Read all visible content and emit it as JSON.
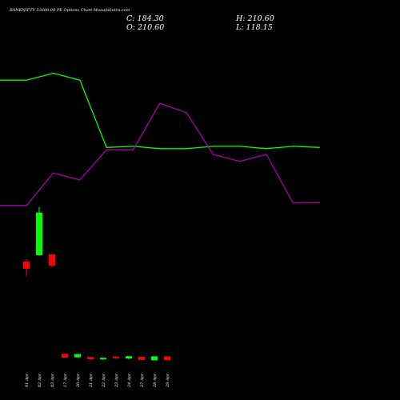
{
  "header": {
    "title": "BANKNIFTY 53600.00 PE Options Chart MunafaSutra.com",
    "close_label": "C: 184.30",
    "open_label": "O: 210.60",
    "high_label": "H: 210.60",
    "low_label": "L: 118.15"
  },
  "colors": {
    "background": "#000000",
    "up": "#00ff00",
    "down": "#ff0000",
    "line_green": "#00ff00",
    "line_purple": "#aa00aa",
    "text": "#ffffff"
  },
  "chart_data": {
    "type": "candlestick",
    "categories": [
      "01 Apr",
      "02 Apr",
      "03 Apr",
      "17 Apr",
      "20 Apr",
      "21 Apr",
      "22 Apr",
      "23 Apr",
      "24 Apr",
      "27 Apr",
      "28 Apr",
      "29 Apr"
    ],
    "price_ohlc": [
      {
        "open": 210,
        "high": 218,
        "low": 160,
        "close": 185
      },
      {
        "open": 232,
        "high": 400,
        "low": 230,
        "close": 380
      },
      {
        "open": 235,
        "high": 235,
        "low": 190,
        "close": 195
      },
      null,
      null,
      null,
      null,
      null,
      null,
      null,
      null,
      null
    ],
    "volume_ohlc": [
      null,
      null,
      null,
      {
        "open": 520,
        "high": 520,
        "low": 360,
        "close": 360
      },
      {
        "open": 360,
        "high": 500,
        "low": 360,
        "close": 500
      },
      {
        "open": 120,
        "high": 120,
        "low": 30,
        "close": 30
      },
      {
        "open": 10,
        "high": 30,
        "low": 10,
        "close": 30
      },
      {
        "open": 170,
        "high": 230,
        "low": 120,
        "close": 120
      },
      {
        "open": 130,
        "high": 230,
        "low": 100,
        "close": 230
      },
      {
        "open": 150,
        "high": 150,
        "low": 20,
        "close": 20
      },
      {
        "open": 40,
        "high": 210,
        "low": 40,
        "close": 210
      },
      {
        "open": 200,
        "high": 200,
        "low": 40,
        "close": 40
      }
    ],
    "green_line": [
      62,
      62,
      65,
      62,
      33,
      33.5,
      32.5,
      32.5,
      33.5,
      33.5,
      32.5,
      33.5,
      33
    ],
    "purple_line": [
      8,
      8,
      22,
      19,
      32,
      32,
      52,
      48,
      30,
      27,
      30,
      9,
      9.2
    ]
  }
}
